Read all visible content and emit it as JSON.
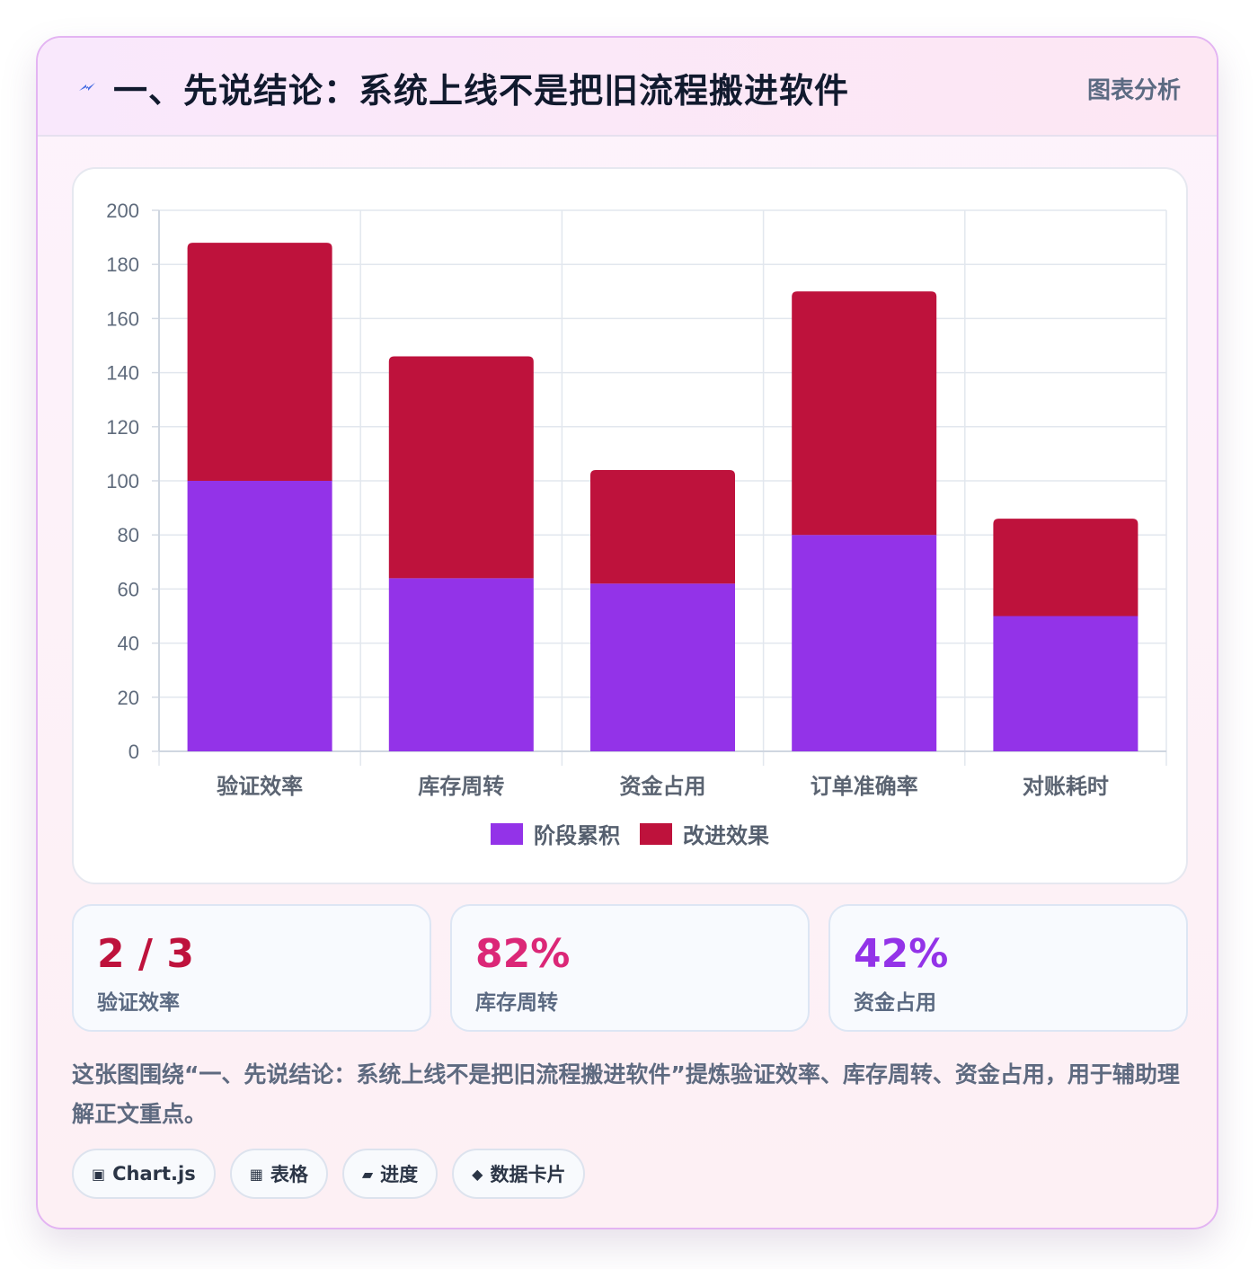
{
  "header": {
    "title": "一、先说结论：系统上线不是把旧流程搬进软件",
    "tag": "图表分析"
  },
  "chart_data": {
    "type": "bar",
    "stacked": true,
    "categories": [
      "验证效率",
      "库存周转",
      "资金占用",
      "订单准确率",
      "对账耗时"
    ],
    "series": [
      {
        "name": "阶段累积",
        "color": "#9333e8",
        "values": [
          100,
          64,
          62,
          80,
          50
        ]
      },
      {
        "name": "改进效果",
        "color": "#be123c",
        "values": [
          88,
          82,
          42,
          90,
          36
        ]
      }
    ],
    "ylim": [
      0,
      200
    ],
    "yticks": [
      0,
      20,
      40,
      60,
      80,
      100,
      120,
      140,
      160,
      180,
      200
    ],
    "grid": true,
    "legend": "bottom"
  },
  "stats": [
    {
      "value": "2 / 3",
      "label": "验证效率",
      "color": "#be123c"
    },
    {
      "value": "82%",
      "label": "库存周转",
      "color": "#db2777"
    },
    {
      "value": "42%",
      "label": "资金占用",
      "color": "#9333e8"
    }
  ],
  "description": "这张图围绕“一、先说结论：系统上线不是把旧流程搬进软件”提炼验证效率、库存周转、资金占用，用于辅助理解正文重点。",
  "chips": [
    {
      "icon": "▣",
      "label": "Chart.js"
    },
    {
      "icon": "▦",
      "label": "表格"
    },
    {
      "icon": "▰",
      "label": "进度"
    },
    {
      "icon": "◆",
      "label": "数据卡片"
    }
  ]
}
